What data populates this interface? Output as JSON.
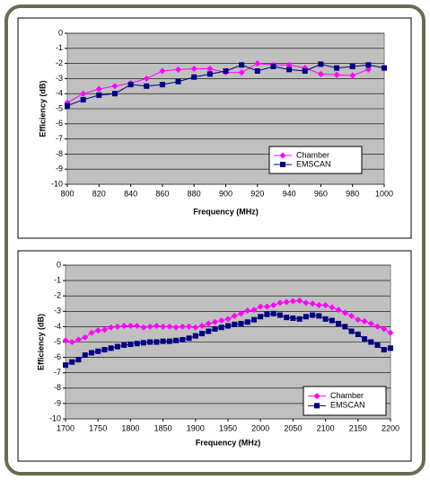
{
  "chart_data": [
    {
      "type": "line",
      "xlabel": "Frequency (MHz)",
      "ylabel": "Efficiency (dB)",
      "x": [
        800,
        810,
        820,
        830,
        840,
        850,
        860,
        870,
        880,
        890,
        900,
        910,
        920,
        930,
        940,
        950,
        960,
        970,
        980,
        990,
        1000
      ],
      "series": [
        {
          "name": "Chamber",
          "color": "#ff00ff",
          "marker": "diamond",
          "values": [
            -4.6,
            -4.0,
            -3.7,
            -3.5,
            -3.3,
            -3.0,
            -2.5,
            -2.4,
            -2.35,
            -2.35,
            -2.6,
            -2.6,
            -2.0,
            -2.1,
            -2.1,
            -2.3,
            -2.7,
            -2.75,
            -2.8,
            -2.4,
            null
          ]
        },
        {
          "name": "EMSCAN",
          "color": "#000080",
          "marker": "square",
          "values": [
            -4.8,
            -4.4,
            -4.1,
            -4.0,
            -3.4,
            -3.5,
            -3.4,
            -3.2,
            -2.9,
            -2.7,
            -2.5,
            -2.1,
            -2.5,
            -2.2,
            -2.4,
            -2.5,
            -2.05,
            -2.3,
            -2.2,
            -2.1,
            -2.3
          ]
        }
      ],
      "xlim": [
        800,
        1000
      ],
      "xticks": [
        800,
        820,
        840,
        860,
        880,
        900,
        920,
        940,
        960,
        980,
        1000
      ],
      "ylim": [
        -10,
        0
      ],
      "yticks": [
        0,
        -1,
        -2,
        -3,
        -4,
        -5,
        -6,
        -7,
        -8,
        -9,
        -10
      ],
      "grid": true,
      "legend": "lower right",
      "plot_background": "#c0c0c0"
    },
    {
      "type": "line",
      "xlabel": "Frequency (MHz)",
      "ylabel": "Efficiency (dB)",
      "x": [
        1700,
        1710,
        1720,
        1730,
        1740,
        1750,
        1760,
        1770,
        1780,
        1790,
        1800,
        1810,
        1820,
        1830,
        1840,
        1850,
        1860,
        1870,
        1880,
        1890,
        1900,
        1910,
        1920,
        1930,
        1940,
        1950,
        1960,
        1970,
        1980,
        1990,
        2000,
        2010,
        2020,
        2030,
        2040,
        2050,
        2060,
        2070,
        2080,
        2090,
        2100,
        2110,
        2120,
        2130,
        2140,
        2150,
        2160,
        2170,
        2180,
        2190,
        2200
      ],
      "series": [
        {
          "name": "Chamber",
          "color": "#ff00ff",
          "marker": "diamond",
          "values": [
            -4.9,
            -5.0,
            -4.85,
            -4.7,
            -4.4,
            -4.25,
            -4.2,
            -4.05,
            -4.0,
            -3.95,
            -3.95,
            -3.95,
            -4.05,
            -4.0,
            -3.95,
            -4.0,
            -4.0,
            -4.05,
            -4.0,
            -4.0,
            -4.05,
            -3.95,
            -3.8,
            -3.7,
            -3.6,
            -3.5,
            -3.3,
            -3.15,
            -2.95,
            -2.9,
            -2.7,
            -2.7,
            -2.6,
            -2.45,
            -2.4,
            -2.35,
            -2.3,
            -2.45,
            -2.5,
            -2.6,
            -2.6,
            -2.75,
            -2.9,
            -3.1,
            -3.3,
            -3.55,
            -3.65,
            -3.8,
            -4.0,
            -4.15,
            -4.4
          ]
        },
        {
          "name": "EMSCAN",
          "color": "#000080",
          "marker": "square",
          "values": [
            -6.5,
            -6.3,
            -6.15,
            -5.85,
            -5.7,
            -5.6,
            -5.5,
            -5.4,
            -5.3,
            -5.2,
            -5.15,
            -5.1,
            -5.05,
            -5.0,
            -5.0,
            -4.95,
            -4.95,
            -4.9,
            -4.85,
            -4.75,
            -4.6,
            -4.45,
            -4.3,
            -4.15,
            -4.05,
            -3.95,
            -3.85,
            -3.8,
            -3.7,
            -3.55,
            -3.35,
            -3.2,
            -3.15,
            -3.25,
            -3.4,
            -3.45,
            -3.5,
            -3.35,
            -3.25,
            -3.3,
            -3.5,
            -3.6,
            -3.8,
            -4.0,
            -4.3,
            -4.5,
            -4.8,
            -5.0,
            -5.2,
            -5.5,
            -5.4
          ]
        }
      ],
      "xlim": [
        1700,
        2200
      ],
      "xticks": [
        1700,
        1750,
        1800,
        1850,
        1900,
        1950,
        2000,
        2050,
        2100,
        2150,
        2200
      ],
      "ylim": [
        -10,
        0
      ],
      "yticks": [
        0,
        -1,
        -2,
        -3,
        -4,
        -5,
        -6,
        -7,
        -8,
        -9,
        -10
      ],
      "grid": true,
      "legend": "lower right",
      "plot_background": "#c0c0c0"
    }
  ]
}
